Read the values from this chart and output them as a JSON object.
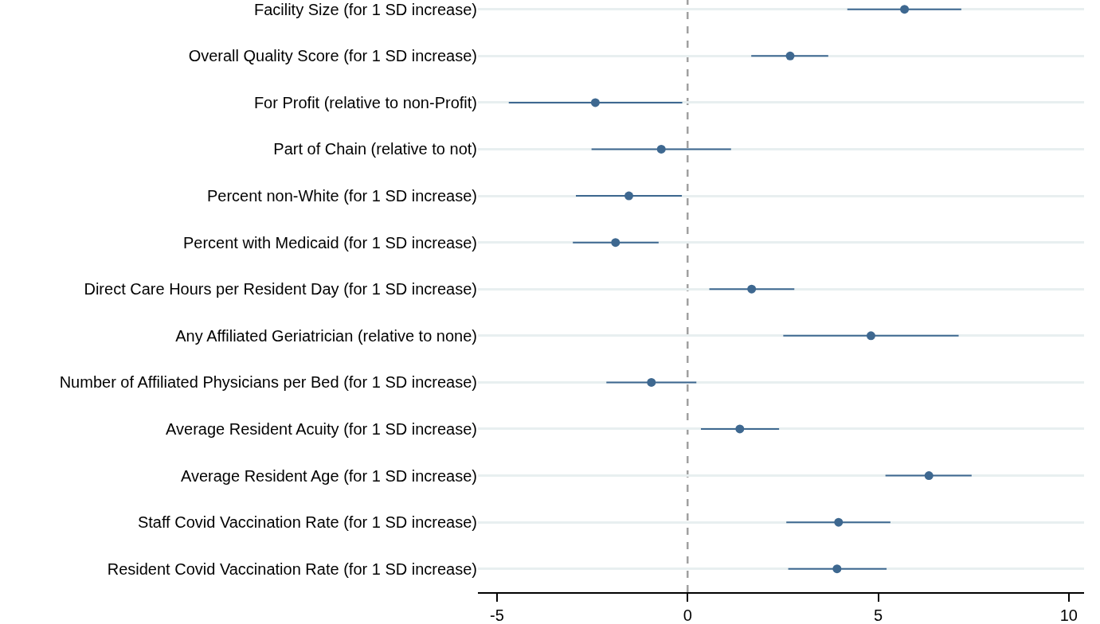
{
  "chart_data": {
    "type": "scatter",
    "orientation": "horizontal",
    "categories": [
      "Facility Size (for 1 SD increase)",
      "Overall Quality Score (for 1 SD increase)",
      "For Profit (relative to non-Profit)",
      "Part of Chain (relative to not)",
      "Percent non-White (for 1 SD increase)",
      "Percent with Medicaid (for 1 SD increase)",
      "Direct Care Hours per Resident Day (for 1 SD increase)",
      "Any Affiliated Geriatrician (relative to none)",
      "Number of Affiliated Physicians per Bed (for 1 SD increase)",
      "Average Resident Acuity (for 1 SD increase)",
      "Average Resident Age (for 1 SD increase)",
      "Staff Covid Vaccination Rate (for 1 SD increase)",
      "Resident Covid Vaccination Rate (for 1 SD increase)"
    ],
    "series": [
      {
        "color": "#3e6890",
        "values": [
          5.69,
          2.69,
          -2.42,
          -0.69,
          -1.54,
          -1.89,
          1.68,
          4.81,
          -0.95,
          1.37,
          6.33,
          3.96,
          3.92
        ],
        "errors": [
          [
            4.19,
            7.18
          ],
          [
            1.67,
            3.69
          ],
          [
            -4.69,
            -0.14
          ],
          [
            -2.52,
            1.14
          ],
          [
            -2.93,
            -0.15
          ],
          [
            -3.01,
            -0.76
          ],
          [
            0.57,
            2.8
          ],
          [
            2.51,
            7.11
          ],
          [
            -2.13,
            0.23
          ],
          [
            0.35,
            2.4
          ],
          [
            5.19,
            7.45
          ],
          [
            2.59,
            5.32
          ],
          [
            2.64,
            5.22
          ]
        ]
      }
    ],
    "xlim": [
      -5.5,
      10.4
    ],
    "xticks": [
      -5,
      0,
      5,
      10
    ],
    "ref_lines": [
      {
        "axis": "x",
        "value": 0,
        "color": "#a0a0a0",
        "line_style": "dashed"
      }
    ],
    "grid": "y",
    "marker": "circle"
  }
}
